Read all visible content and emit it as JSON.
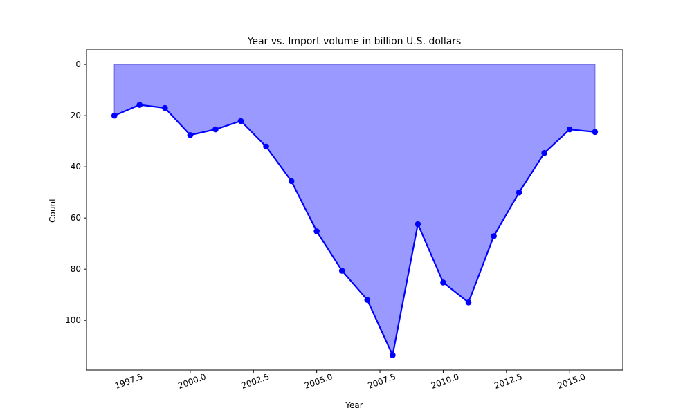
{
  "chart_data": {
    "type": "area",
    "title": "Year vs. Import volume in billion U.S. dollars",
    "xlabel": "Year",
    "ylabel": "Count",
    "x": [
      1997,
      1998,
      1999,
      2000,
      2001,
      2002,
      2003,
      2004,
      2005,
      2006,
      2007,
      2008,
      2009,
      2010,
      2011,
      2012,
      2013,
      2014,
      2015,
      2016
    ],
    "series": [
      {
        "name": "",
        "values": [
          20.0,
          15.8,
          17.0,
          27.6,
          25.4,
          22.1,
          32.1,
          45.6,
          65.2,
          80.6,
          92.0,
          113.6,
          62.4,
          85.2,
          93.0,
          67.1,
          50.0,
          34.6,
          25.4,
          26.4
        ]
      }
    ],
    "xlim": [
      1995.9,
      2017.1
    ],
    "ylim": [
      119.4,
      -5.7
    ],
    "y_inverted": true,
    "x_ticks": [
      "1997.5",
      "2000.0",
      "2002.5",
      "2005.0",
      "2007.5",
      "2010.0",
      "2012.5",
      "2015.0"
    ],
    "x_tick_values": [
      1997.5,
      2000.0,
      2002.5,
      2005.0,
      2007.5,
      2010.0,
      2012.5,
      2015.0
    ],
    "y_ticks": [
      "0",
      "20",
      "40",
      "60",
      "80",
      "100"
    ],
    "y_tick_values": [
      0,
      20,
      40,
      60,
      80,
      100
    ],
    "grid": false,
    "line_color": "#0000ff",
    "fill_color": "#9999ff"
  }
}
